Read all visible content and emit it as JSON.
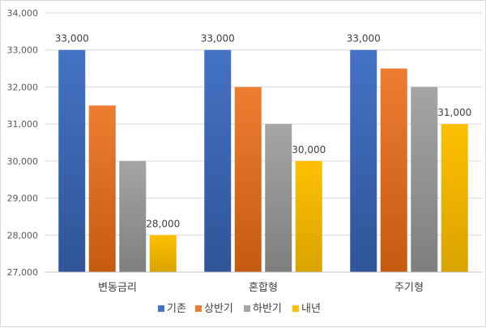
{
  "chart_data": {
    "type": "bar",
    "categories": [
      "변동금리",
      "혼합형",
      "주기형"
    ],
    "series": [
      {
        "name": "기존",
        "values": [
          33000,
          33000,
          33000
        ],
        "color": "#4472c4",
        "color_dark": "#2f5597"
      },
      {
        "name": "상반기",
        "values": [
          31500,
          32000,
          32500
        ],
        "color": "#ed7d31",
        "color_dark": "#c55a11"
      },
      {
        "name": "하반기",
        "values": [
          30000,
          31000,
          32000
        ],
        "color": "#a5a5a5",
        "color_dark": "#7f7f7f"
      },
      {
        "name": "내년",
        "values": [
          28000,
          30000,
          31000
        ],
        "color": "#ffc000",
        "color_dark": "#d9a300"
      }
    ],
    "data_labels": [
      {
        "series": 0,
        "category": 0,
        "text": "33,000"
      },
      {
        "series": 0,
        "category": 1,
        "text": "33,000"
      },
      {
        "series": 0,
        "category": 2,
        "text": "33,000"
      },
      {
        "series": 3,
        "category": 0,
        "text": "28,000"
      },
      {
        "series": 3,
        "category": 1,
        "text": "30,000"
      },
      {
        "series": 3,
        "category": 2,
        "text": "31,000"
      }
    ],
    "ylim": [
      27000,
      34000
    ],
    "yticks": [
      "27,000",
      "28,000",
      "29,000",
      "30,000",
      "31,000",
      "32,000",
      "33,000",
      "34,000"
    ],
    "grid": true,
    "legend_position": "bottom",
    "title": "",
    "xlabel": "",
    "ylabel": ""
  }
}
